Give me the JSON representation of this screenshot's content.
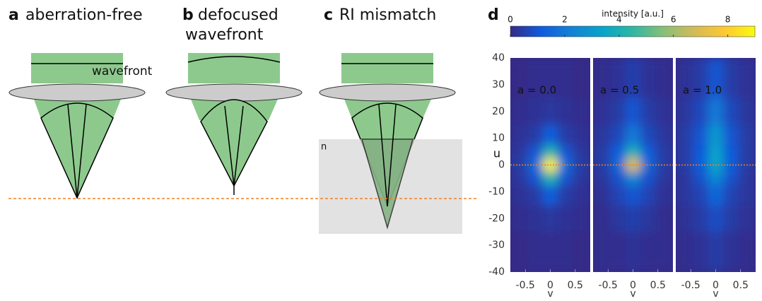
{
  "panels": [
    {
      "letter": "a",
      "title": "aberration-free",
      "label": "wavefront"
    },
    {
      "letter": "b",
      "title": "defocused",
      "title2": "wavefront"
    },
    {
      "letter": "c",
      "title": "RI mismatch",
      "label": "n"
    }
  ],
  "chart_data": {
    "type": "heatmap",
    "letter": "d",
    "colorbar_label": "intensity [a.u.]",
    "clim": [
      0,
      9
    ],
    "cticks": [
      0,
      2,
      4,
      6,
      8
    ],
    "colormap": [
      "#352a87",
      "#0f5cdd",
      "#1481d6",
      "#06a4ca",
      "#2eb7a4",
      "#87bf77",
      "#d1bb59",
      "#fec832",
      "#f9fb0e"
    ],
    "y_label": "u",
    "x_label": "v",
    "ylim": [
      -40,
      40
    ],
    "yticks": [
      40,
      30,
      20,
      10,
      0,
      -10,
      -20,
      -30,
      -40
    ],
    "xlim": [
      -0.8,
      0.8
    ],
    "xticks": [
      -0.5,
      0,
      0.5
    ],
    "hline": 0,
    "x": [
      -0.6,
      -0.3,
      0,
      0.3,
      0.6
    ],
    "y": [
      30,
      20,
      10,
      5,
      0,
      -5,
      -10,
      -20,
      -30
    ],
    "subplots": [
      {
        "name": "a = 0.0",
        "values": [
          [
            0,
            0.1,
            0.1,
            0.1,
            0
          ],
          [
            0.1,
            0.2,
            0.3,
            0.2,
            0.1
          ],
          [
            0.2,
            0.4,
            1.2,
            0.4,
            0.2
          ],
          [
            0.3,
            1.0,
            4.2,
            1.0,
            0.3
          ],
          [
            0.4,
            1.6,
            8.8,
            1.6,
            0.4
          ],
          [
            0.3,
            1.0,
            4.2,
            1.0,
            0.3
          ],
          [
            0.2,
            0.4,
            1.2,
            0.4,
            0.2
          ],
          [
            0.1,
            0.2,
            0.3,
            0.2,
            0.1
          ],
          [
            0,
            0.1,
            0.1,
            0.1,
            0
          ]
        ]
      },
      {
        "name": "a = 0.5",
        "values": [
          [
            0.1,
            0.2,
            0.5,
            0.2,
            0.1
          ],
          [
            0.2,
            0.4,
            1.0,
            0.4,
            0.2
          ],
          [
            0.3,
            0.7,
            2.0,
            0.7,
            0.3
          ],
          [
            0.4,
            1.2,
            4.0,
            1.2,
            0.4
          ],
          [
            0.4,
            1.5,
            7.0,
            1.5,
            0.4
          ],
          [
            0.3,
            0.9,
            2.5,
            0.9,
            0.3
          ],
          [
            0.2,
            0.6,
            1.0,
            0.6,
            0.2
          ],
          [
            0.1,
            0.3,
            0.5,
            0.3,
            0.1
          ],
          [
            0.1,
            0.1,
            0.2,
            0.1,
            0.1
          ]
        ]
      },
      {
        "name": "a = 1.0",
        "values": [
          [
            0.2,
            0.4,
            1.0,
            0.4,
            0.2
          ],
          [
            0.3,
            0.7,
            2.0,
            0.7,
            0.3
          ],
          [
            0.4,
            1.0,
            3.0,
            1.0,
            0.4
          ],
          [
            0.4,
            1.1,
            3.3,
            1.1,
            0.4
          ],
          [
            0.4,
            1.2,
            3.5,
            1.2,
            0.4
          ],
          [
            0.3,
            0.9,
            2.5,
            0.9,
            0.3
          ],
          [
            0.3,
            0.6,
            1.5,
            0.6,
            0.3
          ],
          [
            0.2,
            0.4,
            0.8,
            0.4,
            0.2
          ],
          [
            0.1,
            0.2,
            0.4,
            0.2,
            0.1
          ]
        ]
      }
    ]
  }
}
